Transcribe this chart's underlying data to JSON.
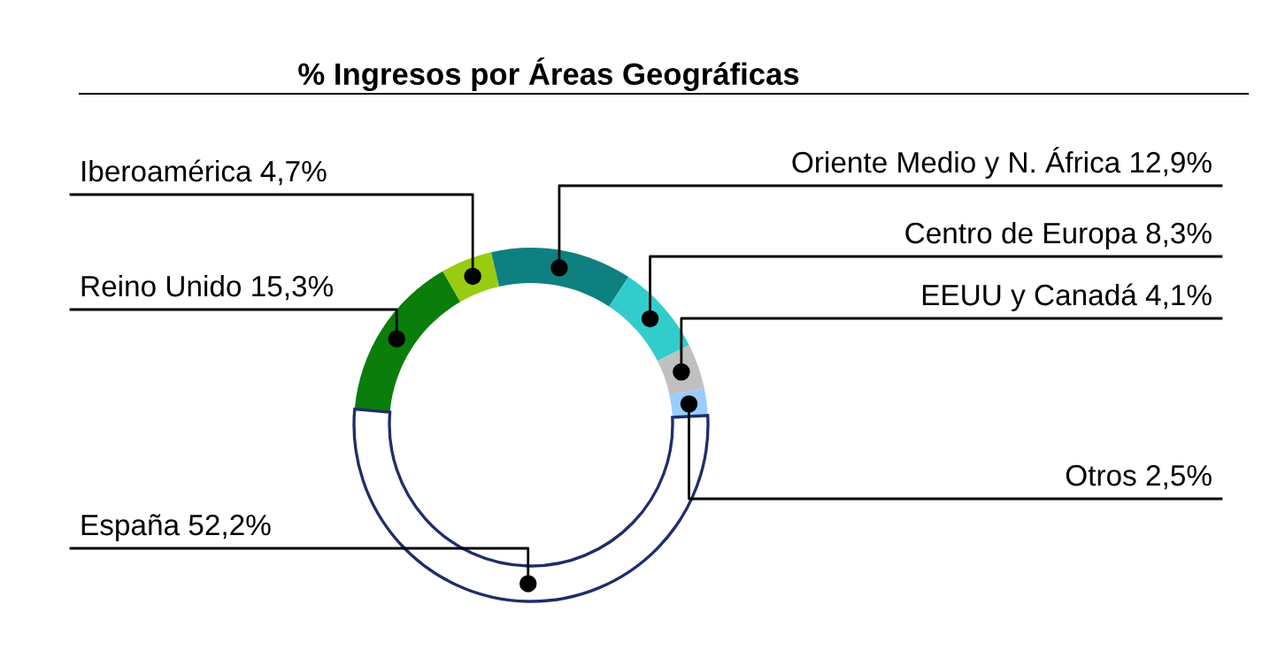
{
  "chart_data": {
    "type": "donut",
    "title": "% Ingresos por Áreas Geográficas",
    "categories": [
      "Reino Unido",
      "Iberoamérica",
      "Oriente Medio y N. África",
      "Centro de Europa",
      "EEUU y Canadá",
      "Otros",
      "España"
    ],
    "values": [
      15.3,
      4.7,
      12.9,
      8.3,
      4.1,
      2.5,
      52.2
    ],
    "value_labels": [
      "15,3%",
      "4,7%",
      "12,9%",
      "8,3%",
      "4,1%",
      "2,5%",
      "52,2%"
    ],
    "colors": [
      "#0a7d0a",
      "#99cc11",
      "#0f8080",
      "#33cccc",
      "#c0c0c0",
      "#99ccff",
      "#ffffff"
    ],
    "legend": false
  }
}
